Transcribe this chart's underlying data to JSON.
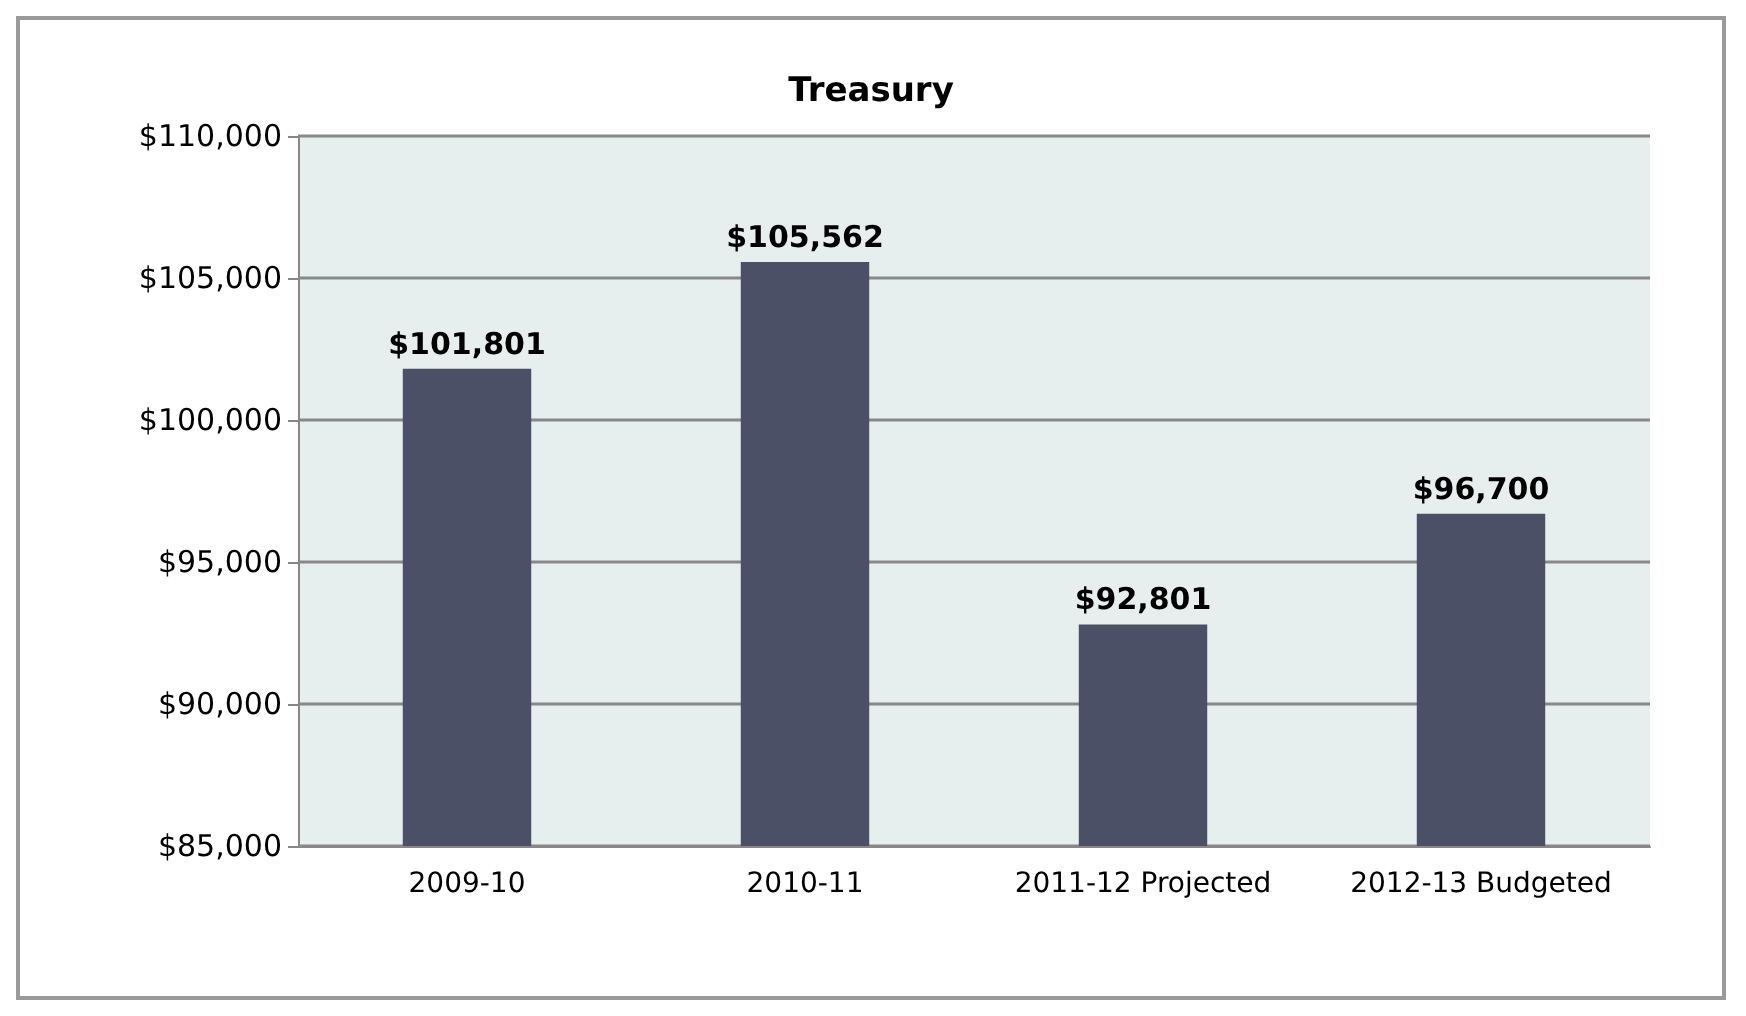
{
  "chart_data": {
    "type": "bar",
    "title": "Treasury",
    "categories": [
      "2009-10",
      "2010-11",
      "2011-12 Projected",
      "2012-13 Budgeted"
    ],
    "values": [
      101801,
      105562,
      92801,
      96700
    ],
    "value_labels": [
      "$101,801",
      "$105,562",
      "$92,801",
      "$96,700"
    ],
    "color": "#4b5066",
    "ylim": [
      85000,
      110000
    ],
    "yticks": [
      {
        "value": 85000,
        "label": "$85,000"
      },
      {
        "value": 90000,
        "label": "$90,000"
      },
      {
        "value": 95000,
        "label": "$95,000"
      },
      {
        "value": 100000,
        "label": "$100,000"
      },
      {
        "value": 105000,
        "label": "$105,000"
      },
      {
        "value": 110000,
        "label": "$110,000"
      }
    ],
    "grid": "y"
  }
}
